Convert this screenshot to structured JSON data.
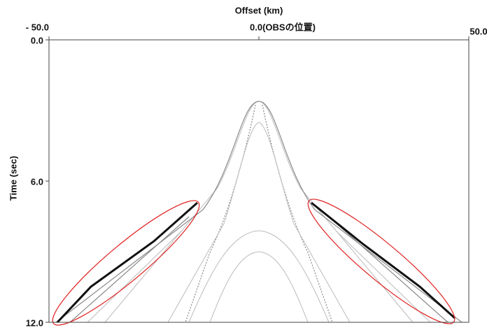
{
  "chart_data": {
    "type": "seismic",
    "xlabel": "Offset (km)",
    "ylabel": "Time (sec)",
    "xlim": [
      -50,
      50
    ],
    "xticks": [
      {
        "value": -50,
        "label": "- 50.0"
      },
      {
        "value": 0,
        "label": "0.0(OBSの位置)"
      },
      {
        "value": 50,
        "label": "50.0"
      }
    ],
    "ylim": [
      0,
      12
    ],
    "yticks": [
      {
        "value": 0,
        "label": "0.0"
      },
      {
        "value": 6,
        "label": "6.0"
      },
      {
        "value": 12,
        "label": "12.0"
      }
    ]
  }
}
